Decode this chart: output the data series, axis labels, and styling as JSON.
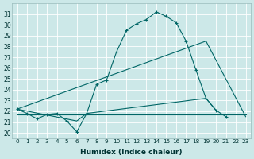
{
  "bg_color": "#cce8e8",
  "grid_color": "#ffffff",
  "line_color": "#006666",
  "xlabel": "Humidex (Indice chaleur)",
  "xlim": [
    -0.5,
    23.5
  ],
  "ylim": [
    19.5,
    32
  ],
  "yticks": [
    20,
    21,
    22,
    23,
    24,
    25,
    26,
    27,
    28,
    29,
    30,
    31
  ],
  "line1_x": [
    0,
    1,
    2,
    3,
    4,
    5,
    6,
    7,
    8,
    9,
    10,
    11,
    12,
    13,
    14,
    15,
    16,
    17,
    18,
    19,
    20,
    21
  ],
  "line1_y": [
    22.2,
    21.8,
    21.3,
    21.7,
    21.8,
    21.1,
    20.1,
    21.8,
    24.5,
    24.9,
    27.5,
    29.5,
    30.1,
    30.5,
    31.2,
    30.8,
    30.2,
    28.5,
    25.8,
    23.2,
    22.1,
    21.5
  ],
  "line2_x": [
    0,
    19,
    23
  ],
  "line2_y": [
    22.2,
    28.5,
    21.5
  ],
  "line3_x": [
    0,
    6,
    7,
    19,
    20
  ],
  "line3_y": [
    22.2,
    21.1,
    21.8,
    23.2,
    22.1
  ],
  "line4_x": [
    0,
    23
  ],
  "line4_y": [
    21.7,
    21.7
  ]
}
